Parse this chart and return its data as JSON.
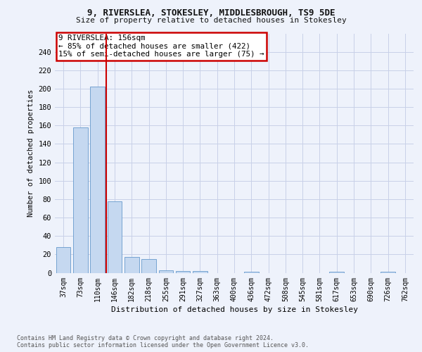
{
  "title1": "9, RIVERSLEA, STOKESLEY, MIDDLESBROUGH, TS9 5DE",
  "title2": "Size of property relative to detached houses in Stokesley",
  "xlabel": "Distribution of detached houses by size in Stokesley",
  "ylabel": "Number of detached properties",
  "categories": [
    "37sqm",
    "73sqm",
    "110sqm",
    "146sqm",
    "182sqm",
    "218sqm",
    "255sqm",
    "291sqm",
    "327sqm",
    "363sqm",
    "400sqm",
    "436sqm",
    "472sqm",
    "508sqm",
    "545sqm",
    "581sqm",
    "617sqm",
    "653sqm",
    "690sqm",
    "726sqm",
    "762sqm"
  ],
  "values": [
    28,
    158,
    202,
    78,
    17,
    15,
    3,
    2,
    2,
    0,
    0,
    1,
    0,
    0,
    0,
    0,
    1,
    0,
    0,
    1,
    0
  ],
  "bar_color": "#c5d8f0",
  "bar_edge_color": "#6699cc",
  "vline_color": "#cc0000",
  "annotation_title": "9 RIVERSLEA: 156sqm",
  "annotation_line1": "← 85% of detached houses are smaller (422)",
  "annotation_line2": "15% of semi-detached houses are larger (75) →",
  "annotation_box_color": "#cc0000",
  "ylim": [
    0,
    260
  ],
  "yticks": [
    0,
    20,
    40,
    60,
    80,
    100,
    120,
    140,
    160,
    180,
    200,
    220,
    240
  ],
  "footer_line1": "Contains HM Land Registry data © Crown copyright and database right 2024.",
  "footer_line2": "Contains public sector information licensed under the Open Government Licence v3.0.",
  "background_color": "#eef2fb",
  "grid_color": "#c8d0e8"
}
